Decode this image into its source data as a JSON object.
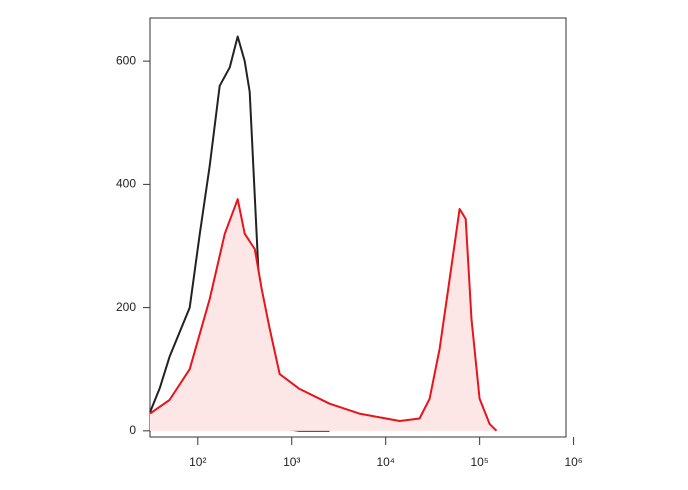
{
  "chart_data": {
    "type": "histogram-line",
    "xscale": "log",
    "xlim": [
      31,
      830000
    ],
    "ylim": [
      -10,
      670
    ],
    "xticks": [
      {
        "value": 100,
        "label": "10²"
      },
      {
        "value": 1000,
        "label": "10³"
      },
      {
        "value": 10000,
        "label": "10⁴"
      },
      {
        "value": 100000,
        "label": "10⁵"
      },
      {
        "value": 1000000,
        "label": "10⁶"
      }
    ],
    "yticks": [
      0,
      200,
      400,
      600
    ],
    "series": [
      {
        "color": "#222222",
        "x": [
          31,
          39.5,
          50,
          64,
          82,
          105,
          134,
          171,
          219,
          266,
          316,
          357,
          404,
          479,
          584,
          745,
          952,
          1210,
          2530
        ],
        "values": [
          30,
          70,
          120,
          160,
          200,
          320,
          430,
          560,
          590,
          640,
          600,
          550,
          380,
          150,
          40,
          8,
          2,
          0,
          0
        ]
      },
      {
        "color": "#e8141b",
        "fill": "#fde6e6",
        "x": [
          31,
          50,
          82,
          134,
          194,
          266,
          316,
          404,
          479,
          584,
          745,
          1210,
          2530,
          5250,
          14100,
          22900,
          29300,
          37500,
          47900,
          61200,
          71000,
          81800,
          100000,
          128000,
          151000
        ],
        "values": [
          28,
          50,
          100,
          214,
          320,
          376,
          320,
          295,
          230,
          165,
          92,
          68,
          44,
          28,
          16,
          20,
          52,
          133,
          246,
          360,
          344,
          181,
          52,
          11,
          0
        ]
      }
    ]
  }
}
